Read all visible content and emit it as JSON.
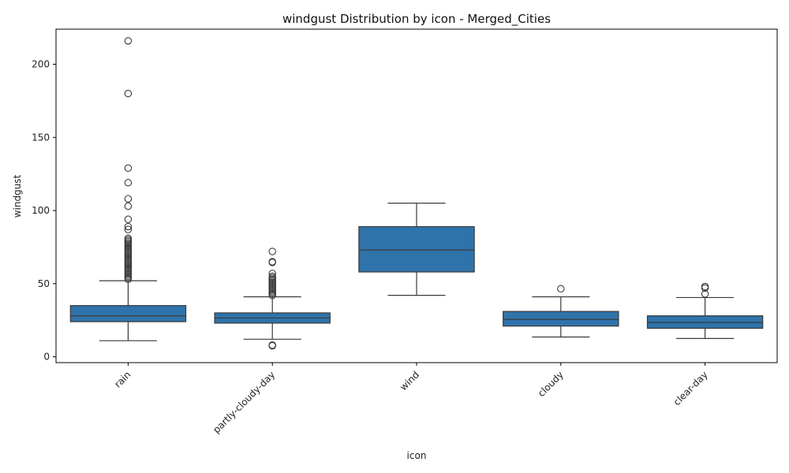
{
  "chart_data": {
    "type": "box",
    "title": "windgust Distribution by icon - Merged_Cities",
    "xlabel": "icon",
    "ylabel": "windgust",
    "ylim": [
      -4,
      224
    ],
    "yticks": [
      0,
      50,
      100,
      150,
      200
    ],
    "ytick_labels": [
      "0",
      "50",
      "100",
      "150",
      "200"
    ],
    "categories": [
      "rain",
      "partly-cloudy-day",
      "wind",
      "cloudy",
      "clear-day"
    ],
    "grid": false,
    "legend": "none",
    "box_color": "#2f73ab",
    "line_color": "#3a3a3a",
    "boxes": [
      {
        "category": "rain",
        "whisker_low": 11,
        "q1": 24,
        "median": 28,
        "q3": 35,
        "whisker_high": 52,
        "outliers": [
          53,
          54,
          55,
          56,
          57,
          58,
          59,
          60,
          61,
          62,
          63,
          64,
          65,
          66,
          67,
          68,
          69,
          70,
          71,
          72,
          73,
          74,
          75,
          76,
          77,
          78,
          79,
          80,
          81,
          87,
          89,
          94,
          103,
          108,
          119,
          129,
          180,
          216
        ]
      },
      {
        "category": "partly-cloudy-day",
        "whisker_low": 12,
        "q1": 23,
        "median": 26.5,
        "q3": 30,
        "whisker_high": 41,
        "outliers": [
          7.5,
          8,
          42,
          43,
          44,
          45,
          46,
          47,
          48,
          49,
          50,
          51,
          52,
          53,
          54,
          55,
          57,
          64.5,
          65,
          72
        ]
      },
      {
        "category": "wind",
        "whisker_low": 42,
        "q1": 58,
        "median": 73,
        "q3": 89,
        "whisker_high": 105,
        "outliers": []
      },
      {
        "category": "cloudy",
        "whisker_low": 13.5,
        "q1": 21,
        "median": 25.5,
        "q3": 31,
        "whisker_high": 41,
        "outliers": [
          46.5
        ]
      },
      {
        "category": "clear-day",
        "whisker_low": 12.5,
        "q1": 19.5,
        "median": 23.5,
        "q3": 28,
        "whisker_high": 40.5,
        "outliers": [
          43,
          47,
          48
        ]
      }
    ]
  }
}
